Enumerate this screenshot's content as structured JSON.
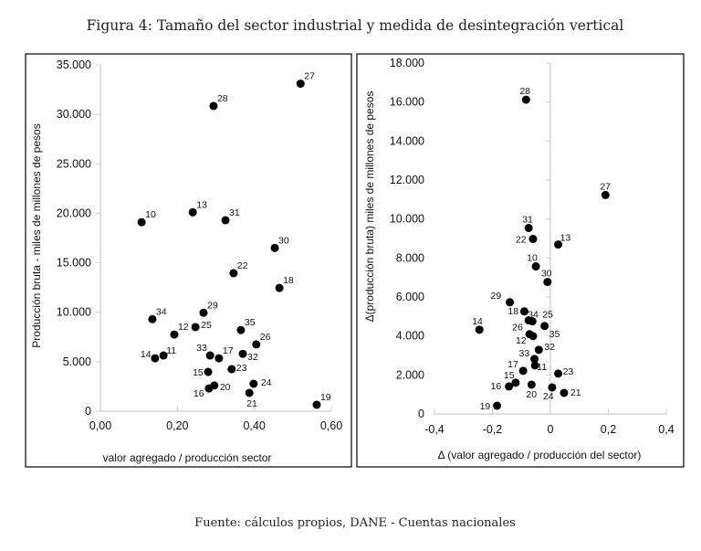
{
  "title": "Figura 4: Tamaño del sector industrial y medida de desintegración vertical",
  "source": "Fuente: cálculos propios, DANE - Cuentas nacionales",
  "chart_data": [
    {
      "type": "scatter",
      "xlabel": "valor agregado  / producción sector",
      "ylabel": "Producción bruta - miles de millones de pesos",
      "xlim": [
        0,
        0.6
      ],
      "ylim": [
        0,
        35000
      ],
      "xticks": [
        "0,00",
        "0,20",
        "0,40",
        "0,60"
      ],
      "xtick_values": [
        0,
        0.2,
        0.4,
        0.6
      ],
      "yticks": [
        "0",
        "5.000",
        "10.000",
        "15.000",
        "20.000",
        "25.000",
        "30.000",
        "35.000"
      ],
      "ytick_values": [
        0,
        5000,
        10000,
        15000,
        20000,
        25000,
        30000,
        35000
      ],
      "points": [
        {
          "label": "27",
          "x": 0.52,
          "y": 33100
        },
        {
          "label": "28",
          "x": 0.294,
          "y": 30850
        },
        {
          "label": "10",
          "x": 0.107,
          "y": 19100
        },
        {
          "label": "13",
          "x": 0.24,
          "y": 20100
        },
        {
          "label": "31",
          "x": 0.325,
          "y": 19300
        },
        {
          "label": "30",
          "x": 0.453,
          "y": 16500
        },
        {
          "label": "22",
          "x": 0.346,
          "y": 13950
        },
        {
          "label": "18",
          "x": 0.465,
          "y": 12450
        },
        {
          "label": "29",
          "x": 0.268,
          "y": 9950
        },
        {
          "label": "34",
          "x": 0.135,
          "y": 9300
        },
        {
          "label": "12",
          "x": 0.192,
          "y": 7750
        },
        {
          "label": "25",
          "x": 0.247,
          "y": 8500
        },
        {
          "label": "35",
          "x": 0.365,
          "y": 8200
        },
        {
          "label": "26",
          "x": 0.405,
          "y": 6750
        },
        {
          "label": "33",
          "x": 0.285,
          "y": 5630
        },
        {
          "label": "17",
          "x": 0.308,
          "y": 5350
        },
        {
          "label": "32",
          "x": 0.37,
          "y": 5800
        },
        {
          "label": "14",
          "x": 0.142,
          "y": 5350
        },
        {
          "label": "11",
          "x": 0.164,
          "y": 5630
        },
        {
          "label": "15",
          "x": 0.28,
          "y": 3970
        },
        {
          "label": "23",
          "x": 0.341,
          "y": 4250
        },
        {
          "label": "16",
          "x": 0.282,
          "y": 2300
        },
        {
          "label": "20",
          "x": 0.296,
          "y": 2600
        },
        {
          "label": "24",
          "x": 0.398,
          "y": 2770
        },
        {
          "label": "21",
          "x": 0.387,
          "y": 1850
        },
        {
          "label": "19",
          "x": 0.562,
          "y": 650
        }
      ]
    },
    {
      "type": "scatter",
      "xlabel": "Δ (valor agregado / producción del sector)",
      "ylabel": "Δ(producción bruta)  miles de millones de pesos",
      "xlim": [
        -0.4,
        0.4
      ],
      "ylim": [
        0,
        18000
      ],
      "xticks": [
        "-0,4",
        "-0,2",
        "0",
        "0,2",
        "0,4"
      ],
      "xtick_values": [
        -0.4,
        -0.2,
        0,
        0.2,
        0.4
      ],
      "yticks": [
        "0",
        "2.000",
        "4.000",
        "6.000",
        "8.000",
        "10.000",
        "12.000",
        "14.000",
        "16.000",
        "18.000"
      ],
      "ytick_values": [
        0,
        2000,
        4000,
        6000,
        8000,
        10000,
        12000,
        14000,
        16000,
        18000
      ],
      "points": [
        {
          "label": "28",
          "x": -0.084,
          "y": 16120
        },
        {
          "label": "27",
          "x": 0.19,
          "y": 11230
        },
        {
          "label": "31",
          "x": -0.075,
          "y": 9540
        },
        {
          "label": "22",
          "x": -0.06,
          "y": 8975
        },
        {
          "label": "13",
          "x": 0.027,
          "y": 8690
        },
        {
          "label": "10",
          "x": -0.05,
          "y": 7570
        },
        {
          "label": "30",
          "x": -0.01,
          "y": 6770
        },
        {
          "label": "29",
          "x": -0.14,
          "y": 5730
        },
        {
          "label": "18",
          "x": -0.09,
          "y": 5260
        },
        {
          "label": "34",
          "x": -0.075,
          "y": 4800
        },
        {
          "label": "25",
          "x": -0.062,
          "y": 4750
        },
        {
          "label": "35",
          "x": -0.02,
          "y": 4510
        },
        {
          "label": "14",
          "x": -0.245,
          "y": 4320
        },
        {
          "label": "26",
          "x": -0.072,
          "y": 4090
        },
        {
          "label": "12",
          "x": -0.06,
          "y": 3990
        },
        {
          "label": "32",
          "x": -0.04,
          "y": 3290
        },
        {
          "label": "33",
          "x": -0.055,
          "y": 2820
        },
        {
          "label": "11",
          "x": -0.053,
          "y": 2490
        },
        {
          "label": "17",
          "x": -0.094,
          "y": 2210
        },
        {
          "label": "23",
          "x": 0.027,
          "y": 2070
        },
        {
          "label": "15",
          "x": -0.12,
          "y": 1600
        },
        {
          "label": "16",
          "x": -0.143,
          "y": 1410
        },
        {
          "label": "20",
          "x": -0.065,
          "y": 1500
        },
        {
          "label": "24",
          "x": 0.006,
          "y": 1360
        },
        {
          "label": "21",
          "x": 0.047,
          "y": 1080
        },
        {
          "label": "19",
          "x": -0.184,
          "y": 420
        }
      ]
    }
  ]
}
